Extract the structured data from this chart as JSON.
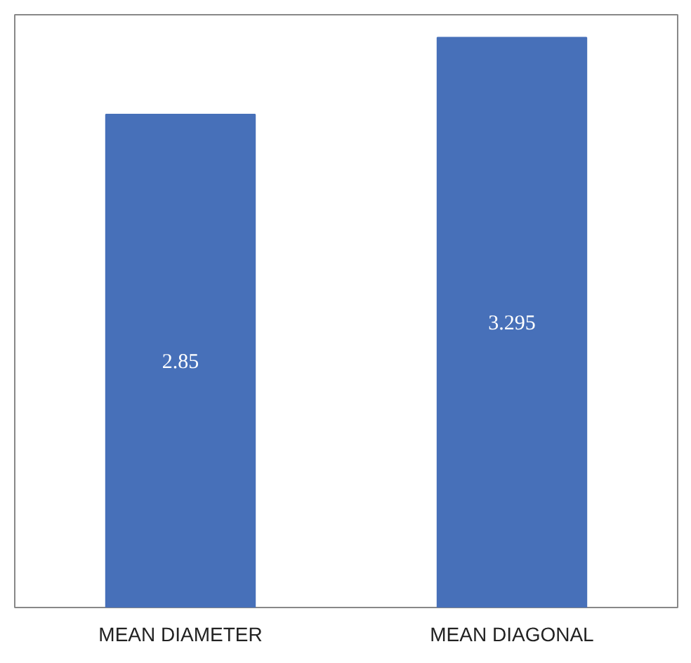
{
  "chart_data": {
    "type": "bar",
    "categories": [
      "MEAN DIAMETER",
      "MEAN DIAGONAL"
    ],
    "values": [
      2.85,
      3.295
    ],
    "color": "#4770b9",
    "data_labels": true,
    "grid": false
  }
}
